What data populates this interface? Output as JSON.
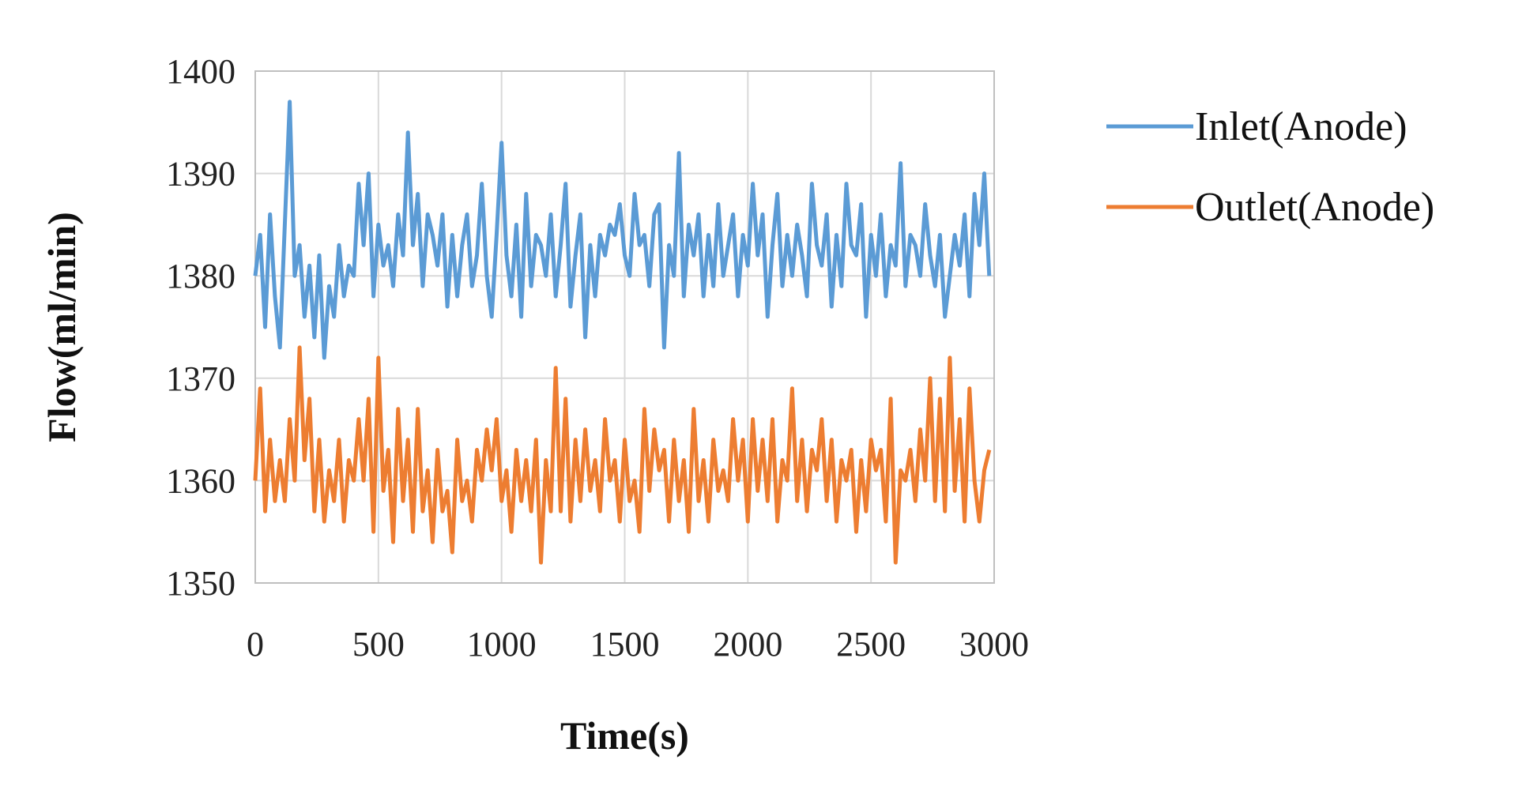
{
  "chart_data": {
    "type": "line",
    "title": "",
    "xlabel": "Time(s)",
    "ylabel": "Flow(ml/min)",
    "xlim": [
      0,
      3000
    ],
    "ylim": [
      1350,
      1400
    ],
    "x_ticks": [
      0,
      500,
      1000,
      1500,
      2000,
      2500,
      3000
    ],
    "y_ticks": [
      1350,
      1360,
      1370,
      1380,
      1390,
      1400
    ],
    "grid": true,
    "legend_position": "right",
    "series": [
      {
        "name": "Inlet(Anode)",
        "color": "#5b9bd5",
        "x": [
          0,
          20,
          40,
          60,
          80,
          100,
          120,
          140,
          160,
          180,
          200,
          220,
          240,
          260,
          280,
          300,
          320,
          340,
          360,
          380,
          400,
          420,
          440,
          460,
          480,
          500,
          520,
          540,
          560,
          580,
          600,
          620,
          640,
          660,
          680,
          700,
          720,
          740,
          760,
          780,
          800,
          820,
          840,
          860,
          880,
          900,
          920,
          940,
          960,
          980,
          1000,
          1020,
          1040,
          1060,
          1080,
          1100,
          1120,
          1140,
          1160,
          1180,
          1200,
          1220,
          1240,
          1260,
          1280,
          1300,
          1320,
          1340,
          1360,
          1380,
          1400,
          1420,
          1440,
          1460,
          1480,
          1500,
          1520,
          1540,
          1560,
          1580,
          1600,
          1620,
          1640,
          1660,
          1680,
          1700,
          1720,
          1740,
          1760,
          1780,
          1800,
          1820,
          1840,
          1860,
          1880,
          1900,
          1920,
          1940,
          1960,
          1980,
          2000,
          2020,
          2040,
          2060,
          2080,
          2100,
          2120,
          2140,
          2160,
          2180,
          2200,
          2220,
          2240,
          2260,
          2280,
          2300,
          2320,
          2340,
          2360,
          2380,
          2400,
          2420,
          2440,
          2460,
          2480,
          2500,
          2520,
          2540,
          2560,
          2580,
          2600,
          2620,
          2640,
          2660,
          2680,
          2700,
          2720,
          2740,
          2760,
          2780,
          2800,
          2820,
          2840,
          2860,
          2880,
          2900,
          2920,
          2940,
          2960,
          2980
        ],
        "values": [
          1380,
          1384,
          1375,
          1386,
          1378,
          1373,
          1385,
          1397,
          1380,
          1383,
          1376,
          1381,
          1374,
          1382,
          1372,
          1379,
          1376,
          1383,
          1378,
          1381,
          1380,
          1389,
          1383,
          1390,
          1378,
          1385,
          1381,
          1383,
          1379,
          1386,
          1382,
          1394,
          1383,
          1388,
          1379,
          1386,
          1384,
          1381,
          1386,
          1377,
          1384,
          1378,
          1383,
          1386,
          1379,
          1382,
          1389,
          1380,
          1376,
          1384,
          1393,
          1382,
          1378,
          1385,
          1376,
          1388,
          1379,
          1384,
          1383,
          1380,
          1386,
          1378,
          1383,
          1389,
          1377,
          1382,
          1386,
          1374,
          1383,
          1378,
          1384,
          1382,
          1385,
          1384,
          1387,
          1382,
          1380,
          1388,
          1383,
          1384,
          1379,
          1386,
          1387,
          1373,
          1383,
          1380,
          1392,
          1378,
          1385,
          1382,
          1386,
          1378,
          1384,
          1379,
          1387,
          1380,
          1383,
          1386,
          1378,
          1384,
          1381,
          1389,
          1382,
          1386,
          1376,
          1383,
          1388,
          1379,
          1384,
          1380,
          1385,
          1382,
          1378,
          1389,
          1383,
          1381,
          1386,
          1377,
          1384,
          1379,
          1389,
          1383,
          1382,
          1387,
          1376,
          1384,
          1380,
          1386,
          1378,
          1383,
          1381,
          1391,
          1379,
          1384,
          1383,
          1380,
          1387,
          1382,
          1379,
          1384,
          1376,
          1380,
          1384,
          1381,
          1386,
          1378,
          1388,
          1383,
          1390,
          1380
        ]
      },
      {
        "name": "Outlet(Anode)",
        "color": "#ed7d31",
        "x": [
          0,
          20,
          40,
          60,
          80,
          100,
          120,
          140,
          160,
          180,
          200,
          220,
          240,
          260,
          280,
          300,
          320,
          340,
          360,
          380,
          400,
          420,
          440,
          460,
          480,
          500,
          520,
          540,
          560,
          580,
          600,
          620,
          640,
          660,
          680,
          700,
          720,
          740,
          760,
          780,
          800,
          820,
          840,
          860,
          880,
          900,
          920,
          940,
          960,
          980,
          1000,
          1020,
          1040,
          1060,
          1080,
          1100,
          1120,
          1140,
          1160,
          1180,
          1200,
          1220,
          1240,
          1260,
          1280,
          1300,
          1320,
          1340,
          1360,
          1380,
          1400,
          1420,
          1440,
          1460,
          1480,
          1500,
          1520,
          1540,
          1560,
          1580,
          1600,
          1620,
          1640,
          1660,
          1680,
          1700,
          1720,
          1740,
          1760,
          1780,
          1800,
          1820,
          1840,
          1860,
          1880,
          1900,
          1920,
          1940,
          1960,
          1980,
          2000,
          2020,
          2040,
          2060,
          2080,
          2100,
          2120,
          2140,
          2160,
          2180,
          2200,
          2220,
          2240,
          2260,
          2280,
          2300,
          2320,
          2340,
          2360,
          2380,
          2400,
          2420,
          2440,
          2460,
          2480,
          2500,
          2520,
          2540,
          2560,
          2580,
          2600,
          2620,
          2640,
          2660,
          2680,
          2700,
          2720,
          2740,
          2760,
          2780,
          2800,
          2820,
          2840,
          2860,
          2880,
          2900,
          2920,
          2940,
          2960,
          2980
        ],
        "values": [
          1360,
          1369,
          1357,
          1364,
          1358,
          1362,
          1358,
          1366,
          1360,
          1373,
          1362,
          1368,
          1357,
          1364,
          1356,
          1361,
          1358,
          1364,
          1356,
          1362,
          1360,
          1366,
          1360,
          1368,
          1355,
          1372,
          1359,
          1363,
          1354,
          1367,
          1358,
          1364,
          1355,
          1367,
          1357,
          1361,
          1354,
          1363,
          1357,
          1359,
          1353,
          1364,
          1358,
          1360,
          1356,
          1363,
          1360,
          1365,
          1361,
          1366,
          1358,
          1361,
          1355,
          1363,
          1358,
          1362,
          1357,
          1364,
          1352,
          1362,
          1357,
          1371,
          1357,
          1368,
          1356,
          1364,
          1358,
          1365,
          1359,
          1362,
          1357,
          1366,
          1360,
          1362,
          1356,
          1364,
          1358,
          1360,
          1355,
          1367,
          1359,
          1365,
          1361,
          1363,
          1356,
          1364,
          1358,
          1362,
          1355,
          1367,
          1358,
          1362,
          1356,
          1364,
          1359,
          1361,
          1358,
          1366,
          1360,
          1364,
          1356,
          1366,
          1359,
          1364,
          1358,
          1366,
          1356,
          1362,
          1360,
          1369,
          1358,
          1364,
          1357,
          1363,
          1361,
          1366,
          1358,
          1364,
          1356,
          1362,
          1360,
          1363,
          1355,
          1362,
          1357,
          1364,
          1361,
          1363,
          1356,
          1368,
          1352,
          1361,
          1360,
          1363,
          1358,
          1365,
          1360,
          1370,
          1358,
          1368,
          1357,
          1372,
          1359,
          1366,
          1356,
          1369,
          1360,
          1356,
          1361,
          1363
        ]
      }
    ]
  }
}
